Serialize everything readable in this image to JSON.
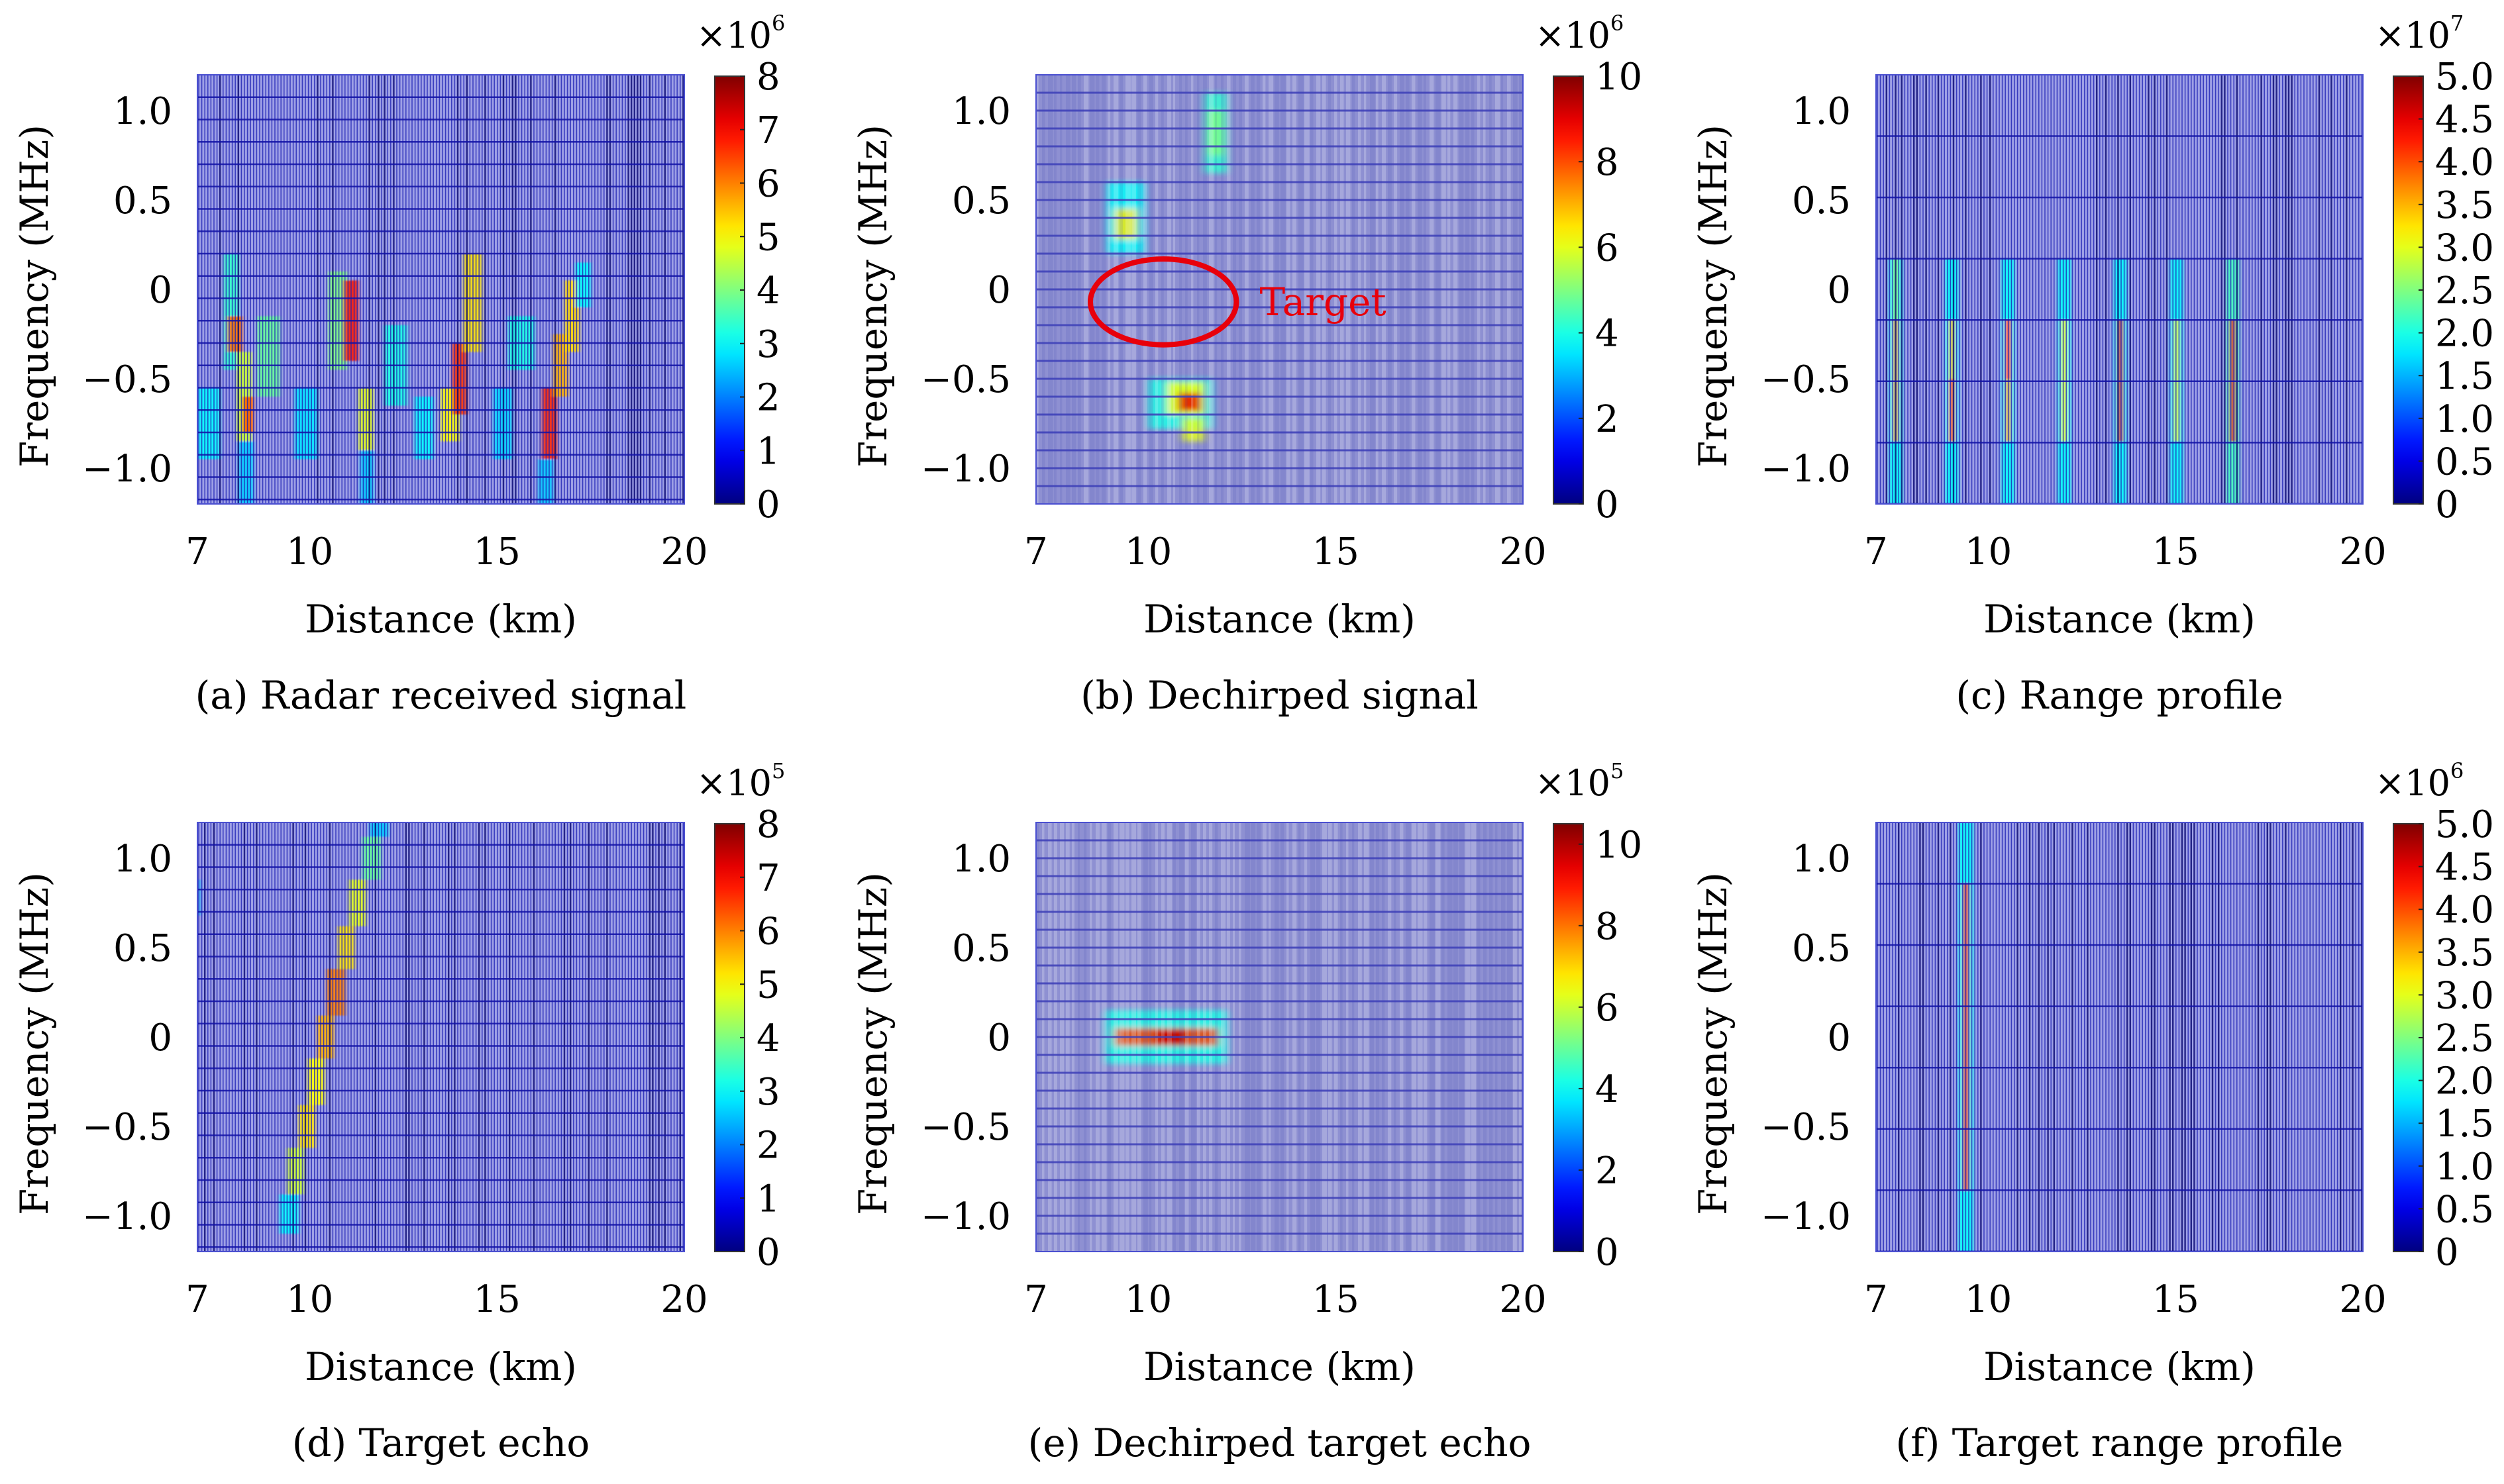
{
  "figure": {
    "colormap": "jet",
    "colors": {
      "background_tint": "#8c8fd0",
      "grid_line": "#1a1aa8",
      "annotation": "#e8000b"
    }
  },
  "chart_data": [
    {
      "id": "a",
      "type": "heatmap",
      "caption": "(a) Radar received signal",
      "xlabel": "Distance (km)",
      "ylabel": "Frequency (MHz)",
      "xlim": [
        7,
        20
      ],
      "ylim": [
        -1.2,
        1.2
      ],
      "xticks": [
        7,
        10,
        15,
        20
      ],
      "xtick_labels": [
        "7",
        "10",
        "15",
        "20"
      ],
      "yticks": [
        1.0,
        0.5,
        0,
        -0.5,
        -1.0
      ],
      "ytick_labels": [
        "1.0",
        "0.5",
        "0",
        "−0.5",
        "−1.0"
      ],
      "colorbar": {
        "multiplier": "×10",
        "exponent": "6",
        "range": [
          0,
          8
        ],
        "ticks": [
          0,
          1,
          2,
          3,
          4,
          5,
          6,
          7,
          8
        ],
        "tick_labels": [
          "0",
          "1",
          "2",
          "3",
          "4",
          "5",
          "6",
          "7",
          "8"
        ]
      },
      "style": "dense",
      "row_step": 0.125,
      "features": [
        {
          "x": [
            7.0,
            7.6
          ],
          "y": [
            -0.95,
            -0.55
          ],
          "value": 3.0
        },
        {
          "x": [
            7.7,
            8.1
          ],
          "y": [
            -0.45,
            0.2
          ],
          "value": 3.4
        },
        {
          "x": [
            7.8,
            8.2
          ],
          "y": [
            -0.35,
            -0.15
          ],
          "value": 6.2
        },
        {
          "x": [
            8.05,
            8.45
          ],
          "y": [
            -0.85,
            -0.35
          ],
          "value": 4.6
        },
        {
          "x": [
            8.2,
            8.5
          ],
          "y": [
            -0.8,
            -0.6
          ],
          "value": 6.3
        },
        {
          "x": [
            8.1,
            8.5
          ],
          "y": [
            -1.2,
            -0.85
          ],
          "value": 2.6
        },
        {
          "x": [
            8.6,
            9.2
          ],
          "y": [
            -0.6,
            -0.15
          ],
          "value": 3.8
        },
        {
          "x": [
            9.6,
            10.2
          ],
          "y": [
            -0.95,
            -0.55
          ],
          "value": 2.8
        },
        {
          "x": [
            10.5,
            11.0
          ],
          "y": [
            -0.45,
            0.1
          ],
          "value": 4.0
        },
        {
          "x": [
            10.9,
            11.3
          ],
          "y": [
            -0.4,
            0.05
          ],
          "value": 6.8
        },
        {
          "x": [
            11.3,
            11.7
          ],
          "y": [
            -0.9,
            -0.55
          ],
          "value": 4.8
        },
        {
          "x": [
            11.35,
            11.7
          ],
          "y": [
            -1.2,
            -0.9
          ],
          "value": 2.6
        },
        {
          "x": [
            12.0,
            12.6
          ],
          "y": [
            -0.65,
            -0.2
          ],
          "value": 3.2
        },
        {
          "x": [
            12.8,
            13.3
          ],
          "y": [
            -0.95,
            -0.6
          ],
          "value": 3.0
        },
        {
          "x": [
            13.5,
            14.0
          ],
          "y": [
            -0.85,
            -0.55
          ],
          "value": 5.0
        },
        {
          "x": [
            13.8,
            14.2
          ],
          "y": [
            -0.7,
            -0.3
          ],
          "value": 6.6
        },
        {
          "x": [
            14.1,
            14.6
          ],
          "y": [
            -0.35,
            0.2
          ],
          "value": 5.2
        },
        {
          "x": [
            14.9,
            15.4
          ],
          "y": [
            -0.95,
            -0.55
          ],
          "value": 2.7
        },
        {
          "x": [
            15.3,
            16.0
          ],
          "y": [
            -0.45,
            -0.15
          ],
          "value": 3.2
        },
        {
          "x": [
            16.2,
            16.6
          ],
          "y": [
            -0.95,
            -0.55
          ],
          "value": 6.7
        },
        {
          "x": [
            16.5,
            16.9
          ],
          "y": [
            -0.6,
            -0.25
          ],
          "value": 5.6
        },
        {
          "x": [
            16.8,
            17.2
          ],
          "y": [
            -0.35,
            0.05
          ],
          "value": 5.3
        },
        {
          "x": [
            16.1,
            16.5
          ],
          "y": [
            -1.2,
            -0.95
          ],
          "value": 2.6
        },
        {
          "x": [
            17.1,
            17.5
          ],
          "y": [
            -0.1,
            0.15
          ],
          "value": 3.0
        }
      ]
    },
    {
      "id": "b",
      "type": "heatmap",
      "caption": "(b) Dechirped signal",
      "xlabel": "Distance (km)",
      "ylabel": "Frequency (MHz)",
      "xlim": [
        7,
        20
      ],
      "ylim": [
        -1.2,
        1.2
      ],
      "xticks": [
        7,
        10,
        15,
        20
      ],
      "xtick_labels": [
        "7",
        "10",
        "15",
        "20"
      ],
      "yticks": [
        1.0,
        0.5,
        0,
        -0.5,
        -1.0
      ],
      "ytick_labels": [
        "1.0",
        "0.5",
        "0",
        "−0.5",
        "−1.0"
      ],
      "colorbar": {
        "multiplier": "×10",
        "exponent": "6",
        "range": [
          0,
          10
        ],
        "ticks": [
          0,
          2,
          4,
          6,
          8,
          10
        ],
        "tick_labels": [
          "0",
          "2",
          "4",
          "6",
          "8",
          "10"
        ]
      },
      "style": "soft",
      "row_step": 0.1,
      "features": [
        {
          "x": [
            11.5,
            12.1
          ],
          "y": [
            0.65,
            1.1
          ],
          "value": 4.2
        },
        {
          "x": [
            11.6,
            12.0
          ],
          "y": [
            0.75,
            1.0
          ],
          "value": 5.0
        },
        {
          "x": [
            8.9,
            9.9
          ],
          "y": [
            0.2,
            0.6
          ],
          "value": 3.8
        },
        {
          "x": [
            9.1,
            9.7
          ],
          "y": [
            0.28,
            0.45
          ],
          "value": 6.5
        },
        {
          "x": [
            10.0,
            11.7
          ],
          "y": [
            -0.78,
            -0.5
          ],
          "value": 4.0
        },
        {
          "x": [
            10.5,
            11.5
          ],
          "y": [
            -0.7,
            -0.52
          ],
          "value": 6.2
        },
        {
          "x": [
            10.8,
            11.4
          ],
          "y": [
            -0.68,
            -0.58
          ],
          "value": 9.0
        },
        {
          "x": [
            10.9,
            11.5
          ],
          "y": [
            -0.85,
            -0.72
          ],
          "value": 6.0
        }
      ],
      "annotation": {
        "label": "Target",
        "center": [
          10.4,
          -0.07
        ],
        "radii": [
          1.95,
          0.24
        ]
      }
    },
    {
      "id": "c",
      "type": "heatmap",
      "caption": "(c) Range profile",
      "xlabel": "Distance (km)",
      "ylabel": "Frequency (MHz)",
      "xlim": [
        7,
        20
      ],
      "ylim": [
        -1.2,
        1.2
      ],
      "xticks": [
        7,
        10,
        15,
        20
      ],
      "xtick_labels": [
        "7",
        "10",
        "15",
        "20"
      ],
      "yticks": [
        1.0,
        0.5,
        0,
        -0.5,
        -1.0
      ],
      "ytick_labels": [
        "1.0",
        "0.5",
        "0",
        "−0.5",
        "−1.0"
      ],
      "colorbar": {
        "multiplier": "×10",
        "exponent": "7",
        "range": [
          0,
          5
        ],
        "ticks": [
          0,
          0.5,
          1,
          1.5,
          2,
          2.5,
          3,
          3.5,
          4,
          4.5,
          5
        ],
        "tick_labels": [
          "0",
          "0.5",
          "1.0",
          "1.5",
          "2.0",
          "2.5",
          "3.0",
          "3.5",
          "4.0",
          "4.5",
          "5.0"
        ]
      },
      "style": "dense",
      "row_step": 0.3428,
      "features": [
        {
          "x": [
            7.35,
            7.7
          ],
          "y": [
            -1.2,
            0.17
          ],
          "value": 1.9
        },
        {
          "x": [
            7.45,
            7.6
          ],
          "y": [
            -0.85,
            -0.17
          ],
          "value": 3.6
        },
        {
          "x": [
            7.45,
            7.6
          ],
          "y": [
            -0.17,
            0.17
          ],
          "value": 2.6
        },
        {
          "x": [
            8.85,
            9.2
          ],
          "y": [
            -1.2,
            0.17
          ],
          "value": 1.9
        },
        {
          "x": [
            8.95,
            9.1
          ],
          "y": [
            -0.85,
            -0.17
          ],
          "value": 3.4
        },
        {
          "x": [
            8.95,
            9.1
          ],
          "y": [
            -0.85,
            -0.5
          ],
          "value": 4.0
        },
        {
          "x": [
            10.35,
            10.7
          ],
          "y": [
            -1.2,
            0.17
          ],
          "value": 1.9
        },
        {
          "x": [
            10.45,
            10.6
          ],
          "y": [
            -0.85,
            -0.17
          ],
          "value": 3.6
        },
        {
          "x": [
            10.45,
            10.6
          ],
          "y": [
            -0.5,
            -0.17
          ],
          "value": 4.3
        },
        {
          "x": [
            11.85,
            12.2
          ],
          "y": [
            -1.2,
            0.17
          ],
          "value": 1.9
        },
        {
          "x": [
            11.95,
            12.1
          ],
          "y": [
            -0.85,
            -0.17
          ],
          "value": 3.1
        },
        {
          "x": [
            13.35,
            13.7
          ],
          "y": [
            -1.2,
            0.17
          ],
          "value": 1.9
        },
        {
          "x": [
            13.45,
            13.6
          ],
          "y": [
            -0.85,
            -0.17
          ],
          "value": 4.5
        },
        {
          "x": [
            14.85,
            15.2
          ],
          "y": [
            -1.2,
            0.17
          ],
          "value": 1.9
        },
        {
          "x": [
            14.95,
            15.1
          ],
          "y": [
            -0.85,
            -0.17
          ],
          "value": 3.0
        },
        {
          "x": [
            16.35,
            16.7
          ],
          "y": [
            -1.2,
            0.17
          ],
          "value": 2.2
        },
        {
          "x": [
            16.45,
            16.6
          ],
          "y": [
            -0.85,
            -0.17
          ],
          "value": 4.5
        }
      ]
    },
    {
      "id": "d",
      "type": "heatmap",
      "caption": "(d) Target echo",
      "xlabel": "Distance (km)",
      "ylabel": "Frequency (MHz)",
      "xlim": [
        7,
        20
      ],
      "ylim": [
        -1.2,
        1.2
      ],
      "xticks": [
        7,
        10,
        15,
        20
      ],
      "xtick_labels": [
        "7",
        "10",
        "15",
        "20"
      ],
      "yticks": [
        1.0,
        0.5,
        0,
        -0.5,
        -1.0
      ],
      "ytick_labels": [
        "1.0",
        "0.5",
        "0",
        "−0.5",
        "−1.0"
      ],
      "colorbar": {
        "multiplier": "×10",
        "exponent": "5",
        "range": [
          0,
          8
        ],
        "ticks": [
          0,
          1,
          2,
          3,
          4,
          5,
          6,
          7,
          8
        ],
        "tick_labels": [
          "0",
          "1",
          "2",
          "3",
          "4",
          "5",
          "6",
          "7",
          "8"
        ]
      },
      "style": "dense",
      "row_step": 0.125,
      "features": [
        {
          "x": [
            7.0,
            7.08
          ],
          "y": [
            0.68,
            0.88
          ],
          "value": 2.5
        },
        {
          "x": [
            9.2,
            9.7
          ],
          "y": [
            -1.1,
            -0.88
          ],
          "value": 3.0
        },
        {
          "x": [
            9.4,
            9.85
          ],
          "y": [
            -0.88,
            -0.62
          ],
          "value": 4.6
        },
        {
          "x": [
            9.7,
            10.15
          ],
          "y": [
            -0.62,
            -0.38
          ],
          "value": 5.2
        },
        {
          "x": [
            9.95,
            10.4
          ],
          "y": [
            -0.38,
            -0.12
          ],
          "value": 5.0
        },
        {
          "x": [
            10.2,
            10.65
          ],
          "y": [
            -0.12,
            0.12
          ],
          "value": 5.6
        },
        {
          "x": [
            10.45,
            10.95
          ],
          "y": [
            0.12,
            0.38
          ],
          "value": 6.0
        },
        {
          "x": [
            10.75,
            11.2
          ],
          "y": [
            0.38,
            0.62
          ],
          "value": 5.2
        },
        {
          "x": [
            11.05,
            11.5
          ],
          "y": [
            0.62,
            0.88
          ],
          "value": 4.8
        },
        {
          "x": [
            11.4,
            11.9
          ],
          "y": [
            0.88,
            1.12
          ],
          "value": 3.8
        },
        {
          "x": [
            11.6,
            12.1
          ],
          "y": [
            1.12,
            1.2
          ],
          "value": 2.6
        }
      ]
    },
    {
      "id": "e",
      "type": "heatmap",
      "caption": "(e) Dechirped target echo",
      "xlabel": "Distance (km)",
      "ylabel": "Frequency (MHz)",
      "xlim": [
        7,
        20
      ],
      "ylim": [
        -1.2,
        1.2
      ],
      "xticks": [
        7,
        10,
        15,
        20
      ],
      "xtick_labels": [
        "7",
        "10",
        "15",
        "20"
      ],
      "yticks": [
        1.0,
        0.5,
        0,
        -0.5,
        -1.0
      ],
      "ytick_labels": [
        "1.0",
        "0.5",
        "0",
        "−0.5",
        "−1.0"
      ],
      "colorbar": {
        "multiplier": "×10",
        "exponent": "5",
        "range": [
          0,
          10.5
        ],
        "ticks": [
          0,
          2,
          4,
          6,
          8,
          10
        ],
        "tick_labels": [
          "0",
          "2",
          "4",
          "6",
          "8",
          "10"
        ]
      },
      "style": "soft",
      "row_step": 0.1,
      "features": [
        {
          "x": [
            8.85,
            12.1
          ],
          "y": [
            -0.15,
            0.15
          ],
          "value": 4.2
        },
        {
          "x": [
            9.1,
            11.85
          ],
          "y": [
            -0.05,
            0.05
          ],
          "value": 8.6
        },
        {
          "x": [
            10.2,
            11.0
          ],
          "y": [
            -0.05,
            0.05
          ],
          "value": 9.8
        }
      ]
    },
    {
      "id": "f",
      "type": "heatmap",
      "caption": "(f) Target range profile",
      "xlabel": "Distance (km)",
      "ylabel": "Frequency (MHz)",
      "xlim": [
        7,
        20
      ],
      "ylim": [
        -1.2,
        1.2
      ],
      "xticks": [
        7,
        10,
        15,
        20
      ],
      "xtick_labels": [
        "7",
        "10",
        "15",
        "20"
      ],
      "yticks": [
        1.0,
        0.5,
        0,
        -0.5,
        -1.0
      ],
      "ytick_labels": [
        "1.0",
        "0.5",
        "0",
        "−0.5",
        "−1.0"
      ],
      "colorbar": {
        "multiplier": "×10",
        "exponent": "6",
        "range": [
          0,
          5
        ],
        "ticks": [
          0,
          0.5,
          1,
          1.5,
          2,
          2.5,
          3,
          3.5,
          4,
          4.5,
          5
        ],
        "tick_labels": [
          "0",
          "0.5",
          "1.0",
          "1.5",
          "2.0",
          "2.5",
          "3.0",
          "3.5",
          "4.0",
          "4.5",
          "5.0"
        ]
      },
      "style": "dense",
      "row_step": 0.3428,
      "features": [
        {
          "x": [
            9.2,
            9.6
          ],
          "y": [
            -1.2,
            1.2
          ],
          "value": 1.9
        },
        {
          "x": [
            9.32,
            9.48
          ],
          "y": [
            -0.86,
            0.86
          ],
          "value": 4.3
        }
      ]
    }
  ]
}
